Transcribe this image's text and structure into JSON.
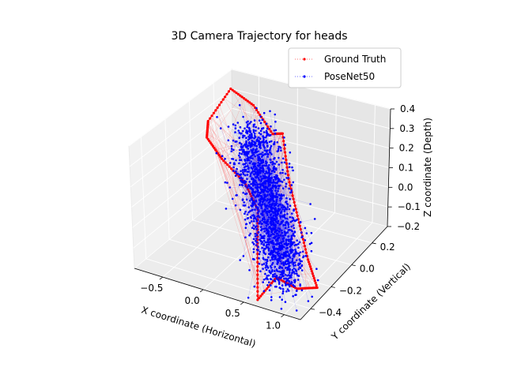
{
  "chart_data": {
    "type": "scatter",
    "title": "3D Camera Trajectory for heads",
    "xlabel": "X coordinate (Horizontal)",
    "ylabel": "Y coordinate (Vertical)",
    "zlabel": "Z coordinate (Depth)",
    "xlim": [
      -0.85,
      1.2
    ],
    "ylim": [
      -0.5,
      0.35
    ],
    "zlim": [
      -0.2,
      0.4
    ],
    "x_ticks": [
      "−0.5",
      "0.0",
      "0.5",
      "1.0"
    ],
    "y_ticks": [
      "−0.4",
      "−0.2",
      "0.0",
      "0.2"
    ],
    "z_ticks": [
      "−0.2",
      "−0.1",
      "0.0",
      "0.1",
      "0.2",
      "0.3",
      "0.4"
    ],
    "grid": true,
    "legend_placement": "top-right",
    "series": [
      {
        "name": "Ground Truth",
        "color": "#ff0000",
        "style": "dotted line with small markers",
        "path_note": "closed looping path around the trajectory envelope"
      },
      {
        "name": "PoseNet50",
        "color": "#0000ff",
        "style": "small point markers",
        "cloud_note": "dense scatter centered near (0.2, -0.1, 0.0)"
      }
    ]
  }
}
